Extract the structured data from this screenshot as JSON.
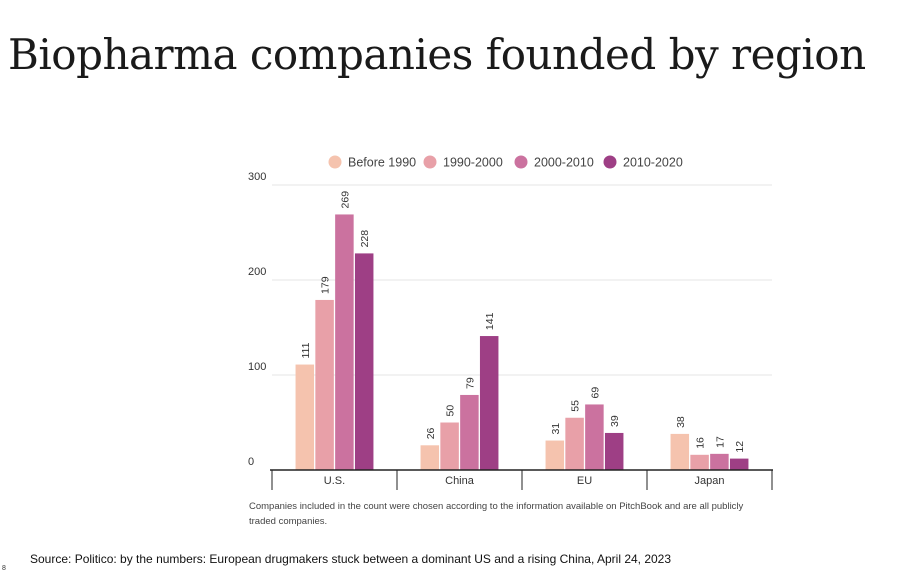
{
  "page": {
    "title": "Biopharma companies founded by region",
    "footnote": "Companies included in the count were chosen according to the information available on PitchBook and are all publicly traded companies.",
    "source": "Source: Politico: by the numbers: European drugmakers stuck between a dominant US and a rising China, April 24, 2023",
    "page_number": "8"
  },
  "chart_data": {
    "type": "bar",
    "categories": [
      "U.S.",
      "China",
      "EU",
      "Japan"
    ],
    "series": [
      {
        "name": "Before 1990",
        "color": "#f5c3ae",
        "values": [
          111,
          26,
          31,
          38
        ]
      },
      {
        "name": "1990-2000",
        "color": "#e8a0a8",
        "values": [
          179,
          50,
          55,
          16
        ]
      },
      {
        "name": "2000-2010",
        "color": "#cb729f",
        "values": [
          269,
          79,
          69,
          17
        ]
      },
      {
        "name": "2010-2020",
        "color": "#9e3f85",
        "values": [
          228,
          141,
          39,
          12
        ]
      }
    ],
    "ylim": [
      0,
      300
    ],
    "yticks": [
      0,
      100,
      200,
      300
    ],
    "grid": true,
    "legend": "top",
    "data_labels": true
  }
}
